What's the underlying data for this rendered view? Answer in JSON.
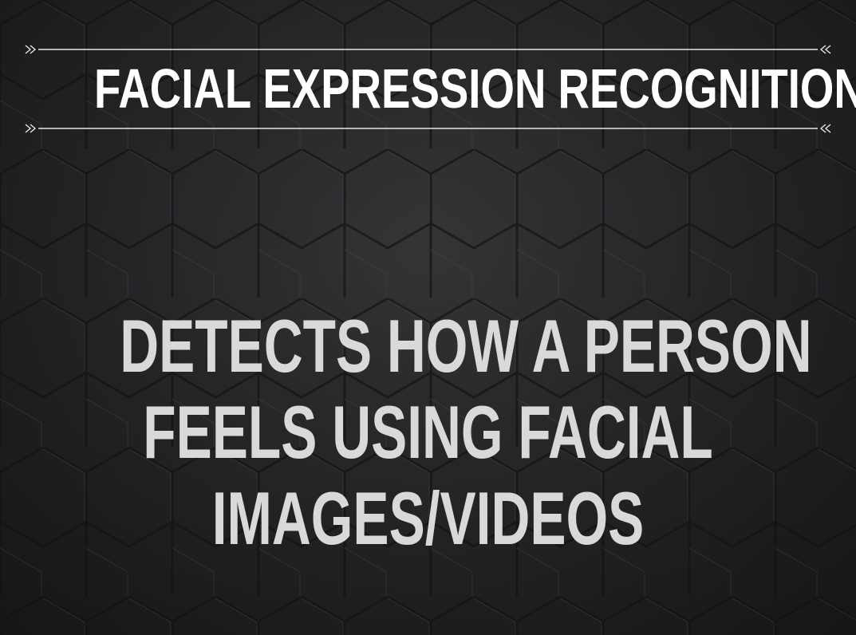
{
  "slide": {
    "title": "FACIAL EXPRESSION RECOGNITION",
    "body_lines": [
      "DETECTS HOW A PERSON",
      "FEELS USING FACIAL",
      "IMAGES/VIDEOS"
    ]
  },
  "colors": {
    "background": "#2a2b2d",
    "title_text": "#ffffff",
    "body_text": "#d9d9d9",
    "rule": "#e6e6e6"
  },
  "decorations": {
    "background_pattern": "hexagon-tiles",
    "rule_ornament": "arrow-ornament"
  }
}
